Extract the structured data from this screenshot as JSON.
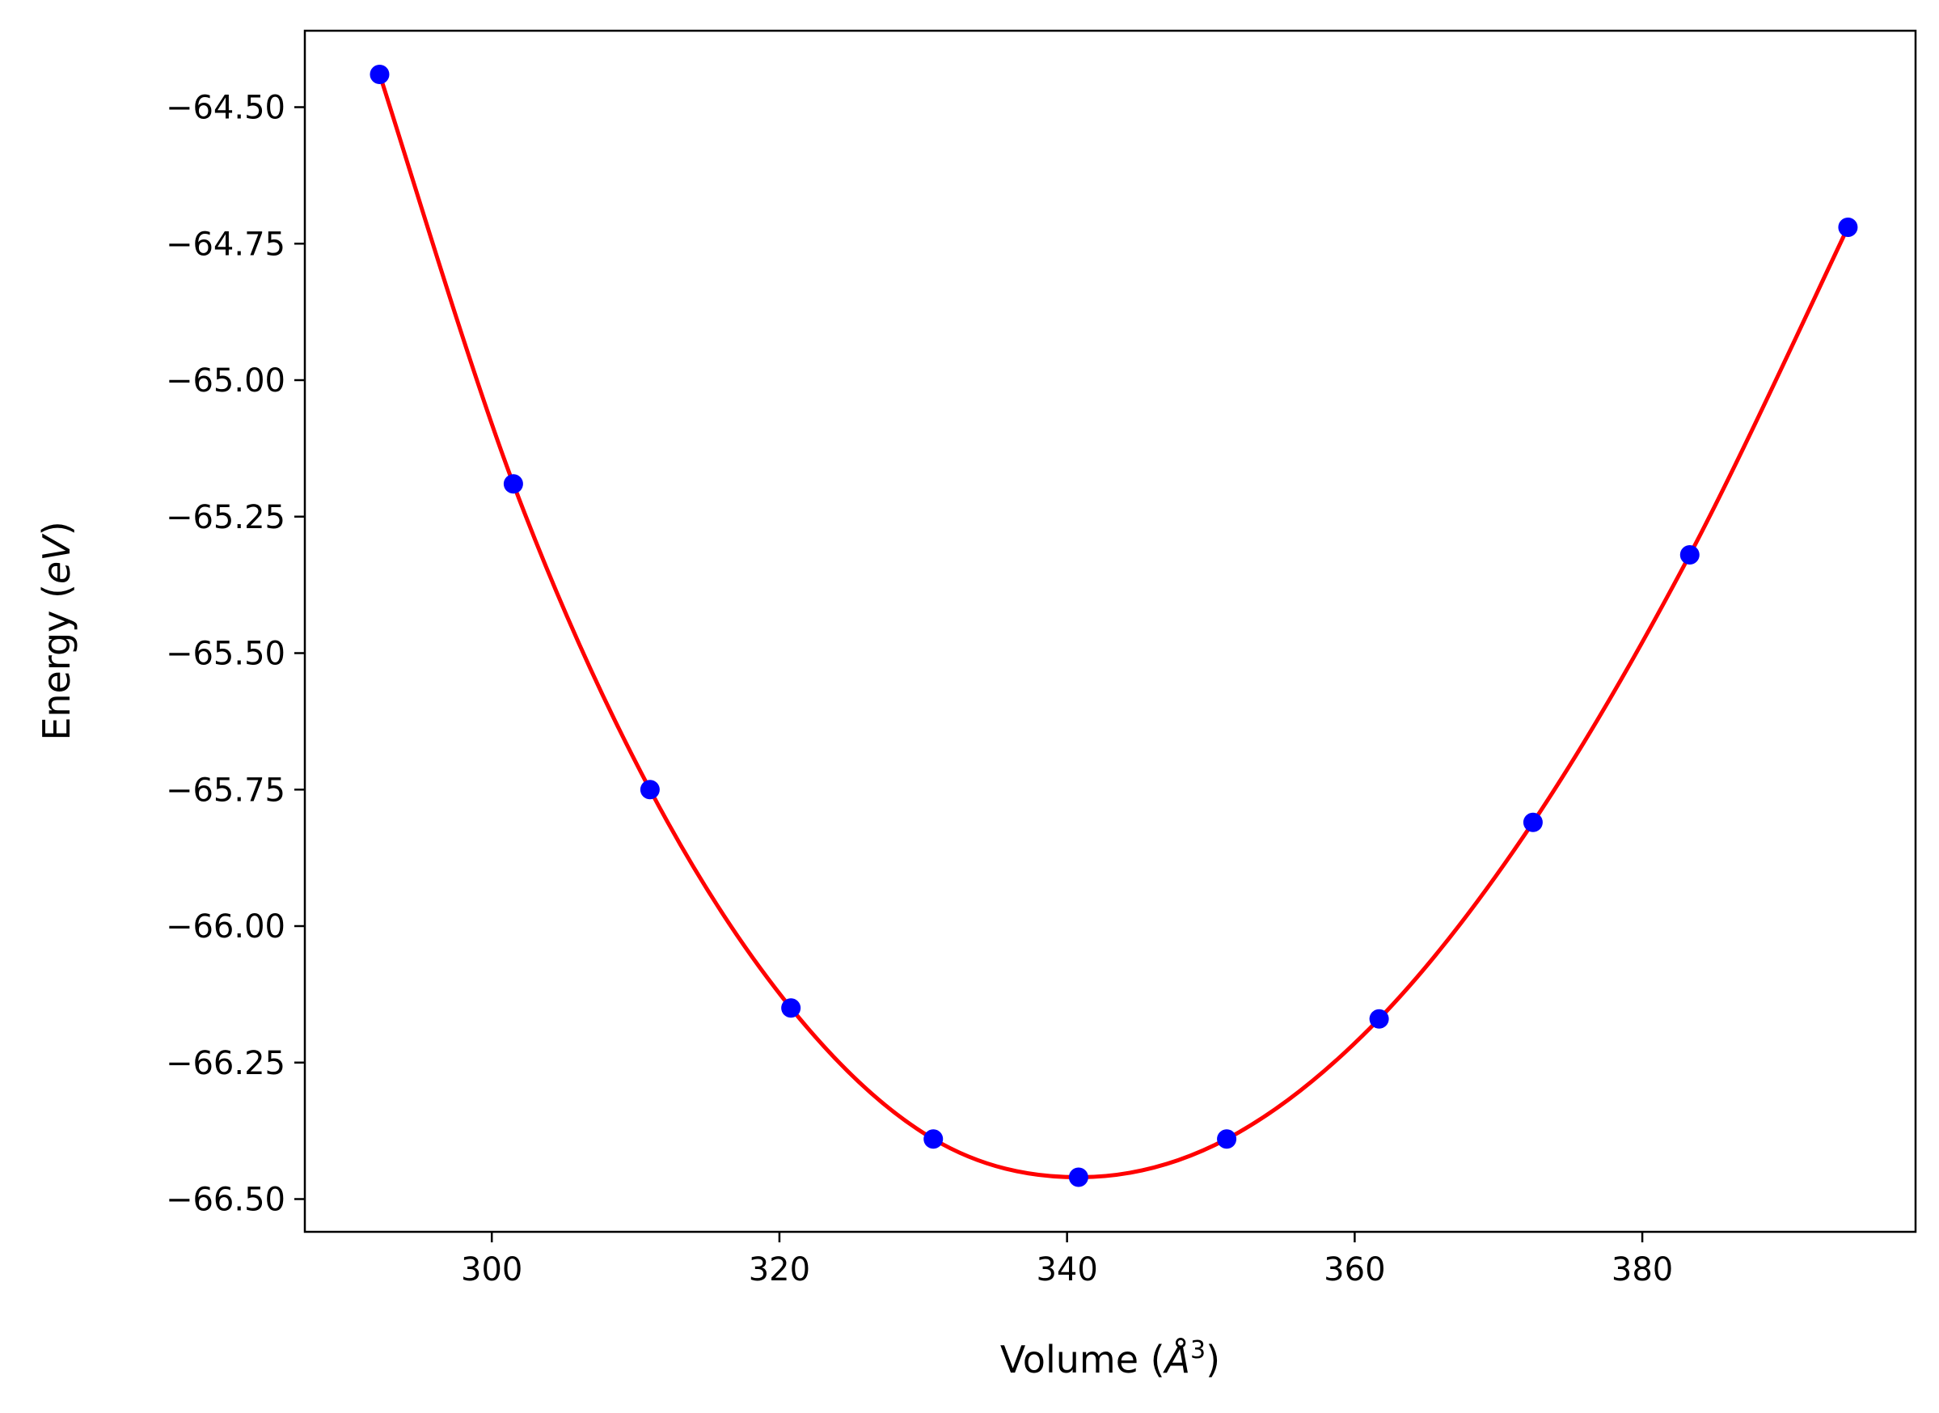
{
  "chart_data": {
    "type": "line",
    "xlabel_parts": {
      "prefix": "Volume (",
      "unit": "Å",
      "exponent": "3",
      "suffix": ")"
    },
    "ylabel_parts": {
      "prefix": "Energy (",
      "unit": "eV",
      "suffix": ")"
    },
    "xlim": [
      287,
      399
    ],
    "ylim": [
      -66.56,
      -64.36
    ],
    "x_ticks": [
      300,
      320,
      340,
      360,
      380
    ],
    "x_tick_labels": [
      "300",
      "320",
      "340",
      "360",
      "380"
    ],
    "y_ticks": [
      -64.5,
      -64.75,
      -65.0,
      -65.25,
      -65.5,
      -65.75,
      -66.0,
      -66.25,
      -66.5
    ],
    "y_tick_labels": [
      "−64.50",
      "−64.75",
      "−65.00",
      "−65.25",
      "−65.50",
      "−65.75",
      "−66.00",
      "−66.25",
      "−66.50"
    ],
    "grid": false,
    "series": [
      {
        "kind": "scatter",
        "color": "#0000ff",
        "x": [
          292.2,
          301.5,
          311.0,
          320.8,
          330.7,
          340.8,
          351.1,
          361.7,
          372.4,
          383.3,
          394.3
        ],
        "y": [
          -64.44,
          -65.19,
          -65.75,
          -66.15,
          -66.39,
          -66.46,
          -66.39,
          -66.17,
          -65.81,
          -65.32,
          -64.72
        ]
      },
      {
        "kind": "line",
        "color": "#ff0000",
        "x": [
          292.2,
          301.5,
          311.0,
          320.8,
          330.7,
          340.8,
          351.1,
          361.7,
          372.4,
          383.3,
          394.3
        ],
        "y": [
          -64.44,
          -65.19,
          -65.75,
          -66.15,
          -66.39,
          -66.46,
          -66.39,
          -66.17,
          -65.81,
          -65.32,
          -64.72
        ]
      }
    ]
  }
}
